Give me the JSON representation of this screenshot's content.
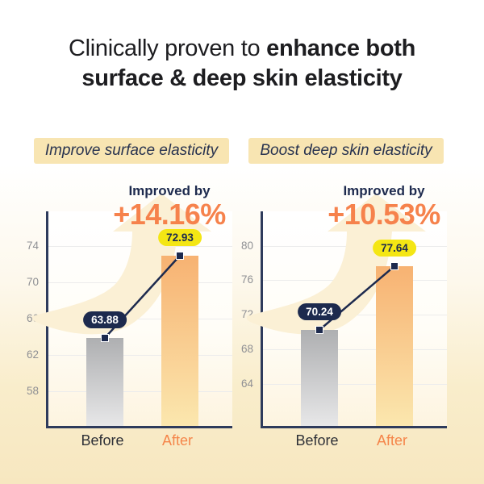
{
  "header": {
    "title_prefix": "Clinically proven to ",
    "title_bold": "enhance both",
    "title_line2": "surface & deep skin elasticity"
  },
  "chart_data": [
    {
      "type": "bar",
      "title": "Improve surface elasticity",
      "annotation_label": "Improved by",
      "annotation_value": "+14.16%",
      "categories": [
        "Before",
        "After"
      ],
      "values": [
        63.88,
        72.93
      ],
      "yticks": [
        74,
        70,
        66,
        62,
        58
      ],
      "ylim": [
        54.2,
        77.8
      ],
      "grid": true,
      "legend": false
    },
    {
      "type": "bar",
      "title": "Boost deep skin elasticity",
      "annotation_label": "Improved by",
      "annotation_value": "+10.53%",
      "categories": [
        "Before",
        "After"
      ],
      "values": [
        70.24,
        77.64
      ],
      "yticks": [
        80,
        76,
        72,
        68,
        64
      ],
      "ylim": [
        59.1,
        84.0
      ],
      "grid": true,
      "legend": false
    }
  ],
  "colors": {
    "accent_orange": "#f6824c",
    "navy": "#1d2a4e",
    "highlight_yellow": "#f4e614",
    "badge_bg": "#f8e5b2",
    "bar_before_top": "#aeafb1",
    "bar_before_bottom": "#e7e7e8",
    "bar_after_top": "#f7b272",
    "bar_after_bottom": "#fbe7ae",
    "page_bottom_cream": "#f7e7c0",
    "arrow_watermark": "#fbf0d5",
    "axis": "#2e3b5c",
    "tick_label": "#8f9094"
  }
}
